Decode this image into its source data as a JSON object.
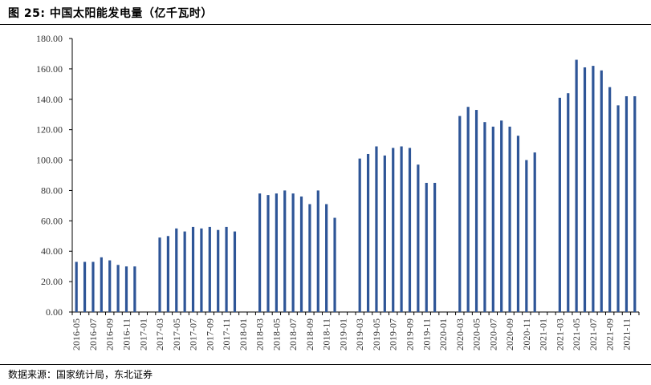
{
  "figure": {
    "title": "图 25:  中国太阳能发电量（亿千瓦时）",
    "source": "数据来源：国家统计局，东北证券"
  },
  "chart_data": {
    "type": "bar",
    "title": "中国太阳能发电量（亿千瓦时）",
    "xlabel": "",
    "ylabel": "",
    "ylim": [
      0,
      180
    ],
    "yticks": [
      "0.00",
      "20.00",
      "40.00",
      "60.00",
      "80.00",
      "100.00",
      "120.00",
      "140.00",
      "160.00",
      "180.00"
    ],
    "grid": false,
    "bar_color": "#2e5597",
    "x_tick_labels": [
      "2016-05",
      "2016-07",
      "2016-09",
      "2016-11",
      "2017-01",
      "2017-03",
      "2017-05",
      "2017-07",
      "2017-09",
      "2017-11",
      "2018-01",
      "2018-03",
      "2018-05",
      "2018-07",
      "2018-09",
      "2018-11",
      "2019-01",
      "2019-03",
      "2019-05",
      "2019-07",
      "2019-09",
      "2019-11",
      "2020-01",
      "2020-03",
      "2020-05",
      "2020-07",
      "2020-09",
      "2020-11",
      "2021-01",
      "2021-03",
      "2021-05",
      "2021-07",
      "2021-09",
      "2021-11"
    ],
    "categories": [
      "2016-05",
      "2016-06",
      "2016-07",
      "2016-08",
      "2016-09",
      "2016-10",
      "2016-11",
      "2016-12",
      "2017-01",
      "2017-02",
      "2017-03",
      "2017-04",
      "2017-05",
      "2017-06",
      "2017-07",
      "2017-08",
      "2017-09",
      "2017-10",
      "2017-11",
      "2017-12",
      "2018-01",
      "2018-02",
      "2018-03",
      "2018-04",
      "2018-05",
      "2018-06",
      "2018-07",
      "2018-08",
      "2018-09",
      "2018-10",
      "2018-11",
      "2018-12",
      "2019-01",
      "2019-02",
      "2019-03",
      "2019-04",
      "2019-05",
      "2019-06",
      "2019-07",
      "2019-08",
      "2019-09",
      "2019-10",
      "2019-11",
      "2019-12",
      "2020-01",
      "2020-02",
      "2020-03",
      "2020-04",
      "2020-05",
      "2020-06",
      "2020-07",
      "2020-08",
      "2020-09",
      "2020-10",
      "2020-11",
      "2020-12",
      "2021-01",
      "2021-02",
      "2021-03",
      "2021-04",
      "2021-05",
      "2021-06",
      "2021-07",
      "2021-08",
      "2021-09",
      "2021-10",
      "2021-11",
      "2021-12"
    ],
    "values": [
      33,
      33,
      33,
      36,
      34,
      31,
      30,
      30,
      null,
      null,
      49,
      50,
      55,
      53,
      56,
      55,
      56,
      54,
      56,
      53,
      null,
      null,
      78,
      77,
      78,
      80,
      78,
      76,
      71,
      80,
      71,
      62,
      null,
      null,
      101,
      104,
      109,
      103,
      108,
      109,
      108,
      97,
      85,
      85,
      null,
      null,
      129,
      135,
      133,
      125,
      122,
      126,
      122,
      116,
      100,
      105,
      null,
      null,
      141,
      144,
      166,
      161,
      162,
      159,
      148,
      136,
      142,
      142
    ]
  }
}
